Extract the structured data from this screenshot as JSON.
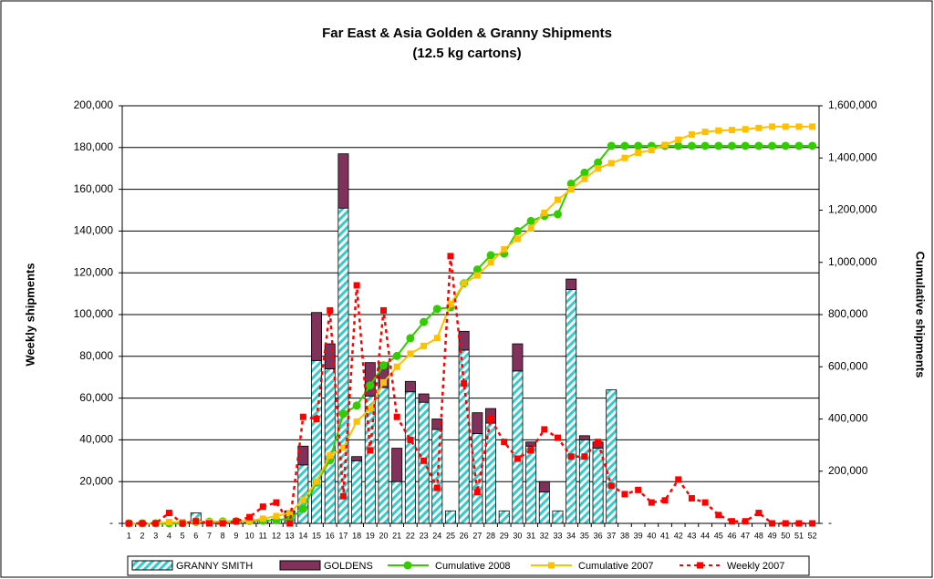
{
  "chart_data": {
    "type": "bar",
    "stacked": true,
    "title": "Far East & Asia Golden & Granny Shipments",
    "subtitle": "(12.5 kg cartons)",
    "y_label": "Weekly shipments",
    "y2_label": "Cumulative shipments",
    "categories": [
      "1",
      "2",
      "3",
      "4",
      "5",
      "6",
      "7",
      "8",
      "9",
      "10",
      "11",
      "12",
      "13",
      "14",
      "15",
      "16",
      "17",
      "18",
      "19",
      "20",
      "21",
      "22",
      "23",
      "24",
      "25",
      "26",
      "27",
      "28",
      "29",
      "30",
      "31",
      "32",
      "33",
      "34",
      "35",
      "36",
      "37",
      "38",
      "39",
      "40",
      "41",
      "42",
      "43",
      "44",
      "45",
      "46",
      "47",
      "48",
      "49",
      "50",
      "51",
      "52"
    ],
    "ylim": [
      0,
      200000
    ],
    "yticks": [
      {
        "value": 0,
        "label": "-"
      },
      {
        "value": 20000,
        "label": "20,000"
      },
      {
        "value": 40000,
        "label": "40,000"
      },
      {
        "value": 60000,
        "label": "60,000"
      },
      {
        "value": 80000,
        "label": "80,000"
      },
      {
        "value": 100000,
        "label": "100,000"
      },
      {
        "value": 120000,
        "label": "120,000"
      },
      {
        "value": 140000,
        "label": "140,000"
      },
      {
        "value": 160000,
        "label": "160,000"
      },
      {
        "value": 180000,
        "label": "180,000"
      },
      {
        "value": 200000,
        "label": "200,000"
      }
    ],
    "y2lim": [
      0,
      1600000
    ],
    "y2ticks": [
      {
        "value": 0,
        "label": "-"
      },
      {
        "value": 200000,
        "label": "200,000"
      },
      {
        "value": 400000,
        "label": "400,000"
      },
      {
        "value": 600000,
        "label": "600,000"
      },
      {
        "value": 800000,
        "label": "800,000"
      },
      {
        "value": 1000000,
        "label": "1,000,000"
      },
      {
        "value": 1200000,
        "label": "1,200,000"
      },
      {
        "value": 1400000,
        "label": "1,400,000"
      },
      {
        "value": 1600000,
        "label": "1,600,000"
      }
    ],
    "grid": true,
    "legend": "bottom",
    "series": [
      {
        "name": "GRANNY SMITH",
        "type": "bar",
        "pattern": "hatched",
        "color": "#33cccc",
        "values": [
          0,
          0,
          0,
          0,
          500,
          5000,
          1000,
          1000,
          1000,
          1000,
          1000,
          2000,
          4000,
          28000,
          78000,
          74000,
          151000,
          30000,
          61000,
          65000,
          20000,
          63000,
          58000,
          45000,
          6000,
          83000,
          43000,
          48000,
          6000,
          73000,
          37000,
          15000,
          6000,
          112000,
          40000,
          36000,
          64000,
          0,
          0,
          0,
          0,
          0,
          0,
          0,
          0,
          0,
          0,
          0,
          0,
          0,
          0,
          0
        ]
      },
      {
        "name": "GOLDENS",
        "type": "bar",
        "color": "#80325a",
        "values": [
          0,
          0,
          0,
          0,
          0,
          0,
          0,
          0,
          0,
          0,
          0,
          0,
          2000,
          9000,
          23000,
          12000,
          26000,
          2000,
          16000,
          12000,
          16000,
          5000,
          4000,
          5000,
          0,
          9000,
          10000,
          7000,
          0,
          13000,
          2000,
          5000,
          0,
          5000,
          2000,
          3000,
          0,
          0,
          0,
          0,
          0,
          0,
          0,
          0,
          0,
          0,
          0,
          0,
          0,
          0,
          0,
          0
        ]
      },
      {
        "name": "Cumulative 2008",
        "type": "line",
        "axis": "y2",
        "marker": "circle",
        "color": "#33cc00",
        "values": [
          0,
          0,
          0,
          0,
          500,
          5500,
          6500,
          7500,
          8500,
          9500,
          10500,
          12500,
          18500,
          55500,
          156500,
          242500,
          419500,
          451500,
          528500,
          605500,
          641500,
          709500,
          771500,
          821500,
          827500,
          919500,
          972500,
          1027500,
          1033500,
          1119500,
          1158500,
          1178500,
          1184500,
          1301500,
          1343500,
          1382500,
          1446500,
          1446500,
          1446500,
          1446500,
          1446500,
          1446500,
          1446500,
          1446500,
          1446500,
          1446500,
          1446500,
          1446500,
          1446500,
          1446500,
          1446500,
          1446500
        ]
      },
      {
        "name": "Cumulative 2007",
        "type": "line",
        "axis": "y2",
        "marker": "square",
        "color": "#ffc000",
        "values": [
          0,
          0,
          0,
          5000,
          5000,
          6000,
          6000,
          6000,
          7000,
          10000,
          18000,
          28000,
          40000,
          90000,
          160000,
          260000,
          290000,
          390000,
          440000,
          540000,
          600000,
          650000,
          680000,
          710000,
          840000,
          920000,
          950000,
          1000000,
          1050000,
          1090000,
          1130000,
          1190000,
          1240000,
          1280000,
          1320000,
          1360000,
          1380000,
          1400000,
          1420000,
          1430000,
          1450000,
          1470000,
          1490000,
          1500000,
          1505000,
          1507000,
          1510000,
          1515000,
          1520000,
          1520000,
          1520000,
          1520000
        ]
      },
      {
        "name": "Weekly 2007",
        "type": "line",
        "dashed": true,
        "marker": "square",
        "color": "#ff0000",
        "values": [
          0,
          0,
          0,
          5000,
          0,
          1000,
          0,
          0,
          1000,
          3000,
          8000,
          10000,
          0,
          51000,
          50000,
          102000,
          13000,
          114000,
          35000,
          102000,
          51000,
          40000,
          30000,
          17000,
          128000,
          67000,
          15000,
          50000,
          39000,
          31000,
          35000,
          45000,
          41000,
          32000,
          32000,
          39000,
          18000,
          14000,
          16000,
          10000,
          11000,
          21000,
          12000,
          10000,
          4000,
          1000,
          1000,
          5000,
          0,
          0,
          0,
          0
        ]
      }
    ]
  }
}
